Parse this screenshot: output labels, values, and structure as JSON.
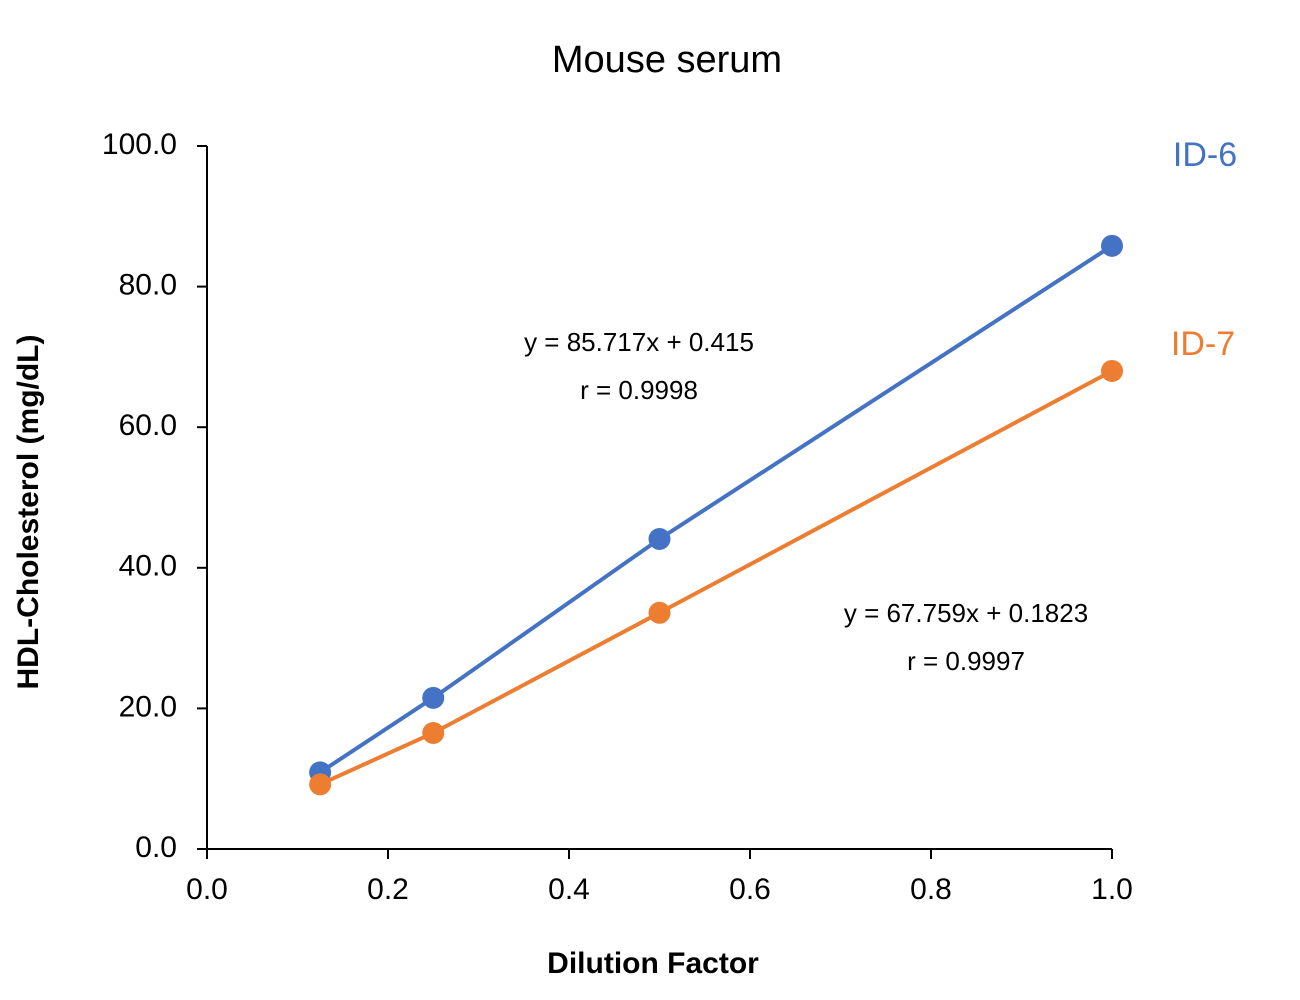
{
  "chart_data": {
    "type": "line",
    "title": "Mouse serum",
    "x_label": "Dilution Factor",
    "y_label": "HDL-Cholesterol (mg/dL)",
    "x": [
      0.125,
      0.25,
      0.5,
      1.0
    ],
    "series": [
      {
        "name": "ID-6",
        "color": "#4472c4",
        "values": [
          10.9,
          21.5,
          44.1,
          85.8
        ]
      },
      {
        "name": "ID-7",
        "color": "#ed7d31",
        "values": [
          9.2,
          16.5,
          33.6,
          68.0
        ]
      }
    ],
    "xlim": [
      0,
      1
    ],
    "ylim": [
      0,
      100
    ],
    "xticks": [
      {
        "value": 0,
        "label": "0.0"
      },
      {
        "value": 0.2,
        "label": "0.2"
      },
      {
        "value": 0.4,
        "label": "0.4"
      },
      {
        "value": 0.6,
        "label": "0.6"
      },
      {
        "value": 0.8,
        "label": "0.8"
      },
      {
        "value": 1,
        "label": "1.0"
      }
    ],
    "yticks": [
      {
        "value": 0,
        "label": "0.0"
      },
      {
        "value": 20,
        "label": "20.0"
      },
      {
        "value": 40,
        "label": "40.0"
      },
      {
        "value": 60,
        "label": "60.0"
      },
      {
        "value": 80,
        "label": "80.0"
      },
      {
        "value": 100,
        "label": "100.0"
      }
    ],
    "grid": false,
    "annotations": [
      {
        "lines": [
          "y = 85.717x + 0.415",
          "r = 0.9998"
        ]
      },
      {
        "lines": [
          "y = 67.759x + 0.1823",
          "r = 0.9997"
        ]
      }
    ]
  }
}
